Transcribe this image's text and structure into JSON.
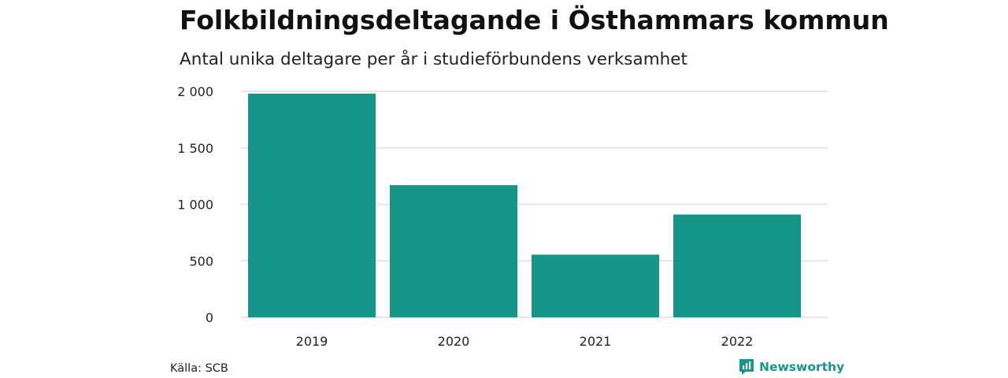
{
  "header": {
    "title": "Folkbildningsdeltagande i Östhammars kommun",
    "subtitle": "Antal unika deltagare per år i studieförbundens verksamhet"
  },
  "chart_data": {
    "type": "bar",
    "categories": [
      "2019",
      "2020",
      "2021",
      "2022"
    ],
    "values": [
      1980,
      1170,
      555,
      910
    ],
    "title": "Folkbildningsdeltagande i Östhammars kommun",
    "subtitle": "Antal unika deltagare per år i studieförbundens verksamhet",
    "ylim": [
      0,
      2000
    ],
    "yticks": [
      0,
      500,
      1000,
      1500,
      2000
    ],
    "ytick_labels": [
      "0",
      "500",
      "1 000",
      "1 500",
      "2 000"
    ],
    "grid": true,
    "bar_color": "#159688",
    "grid_color": "#e0e0e0"
  },
  "footer": {
    "source_label": "Källa: SCB",
    "brand_name": "Newsworthy",
    "brand_color": "#17968a",
    "brand_icon": "newsworthy-chart-bubble-icon"
  }
}
